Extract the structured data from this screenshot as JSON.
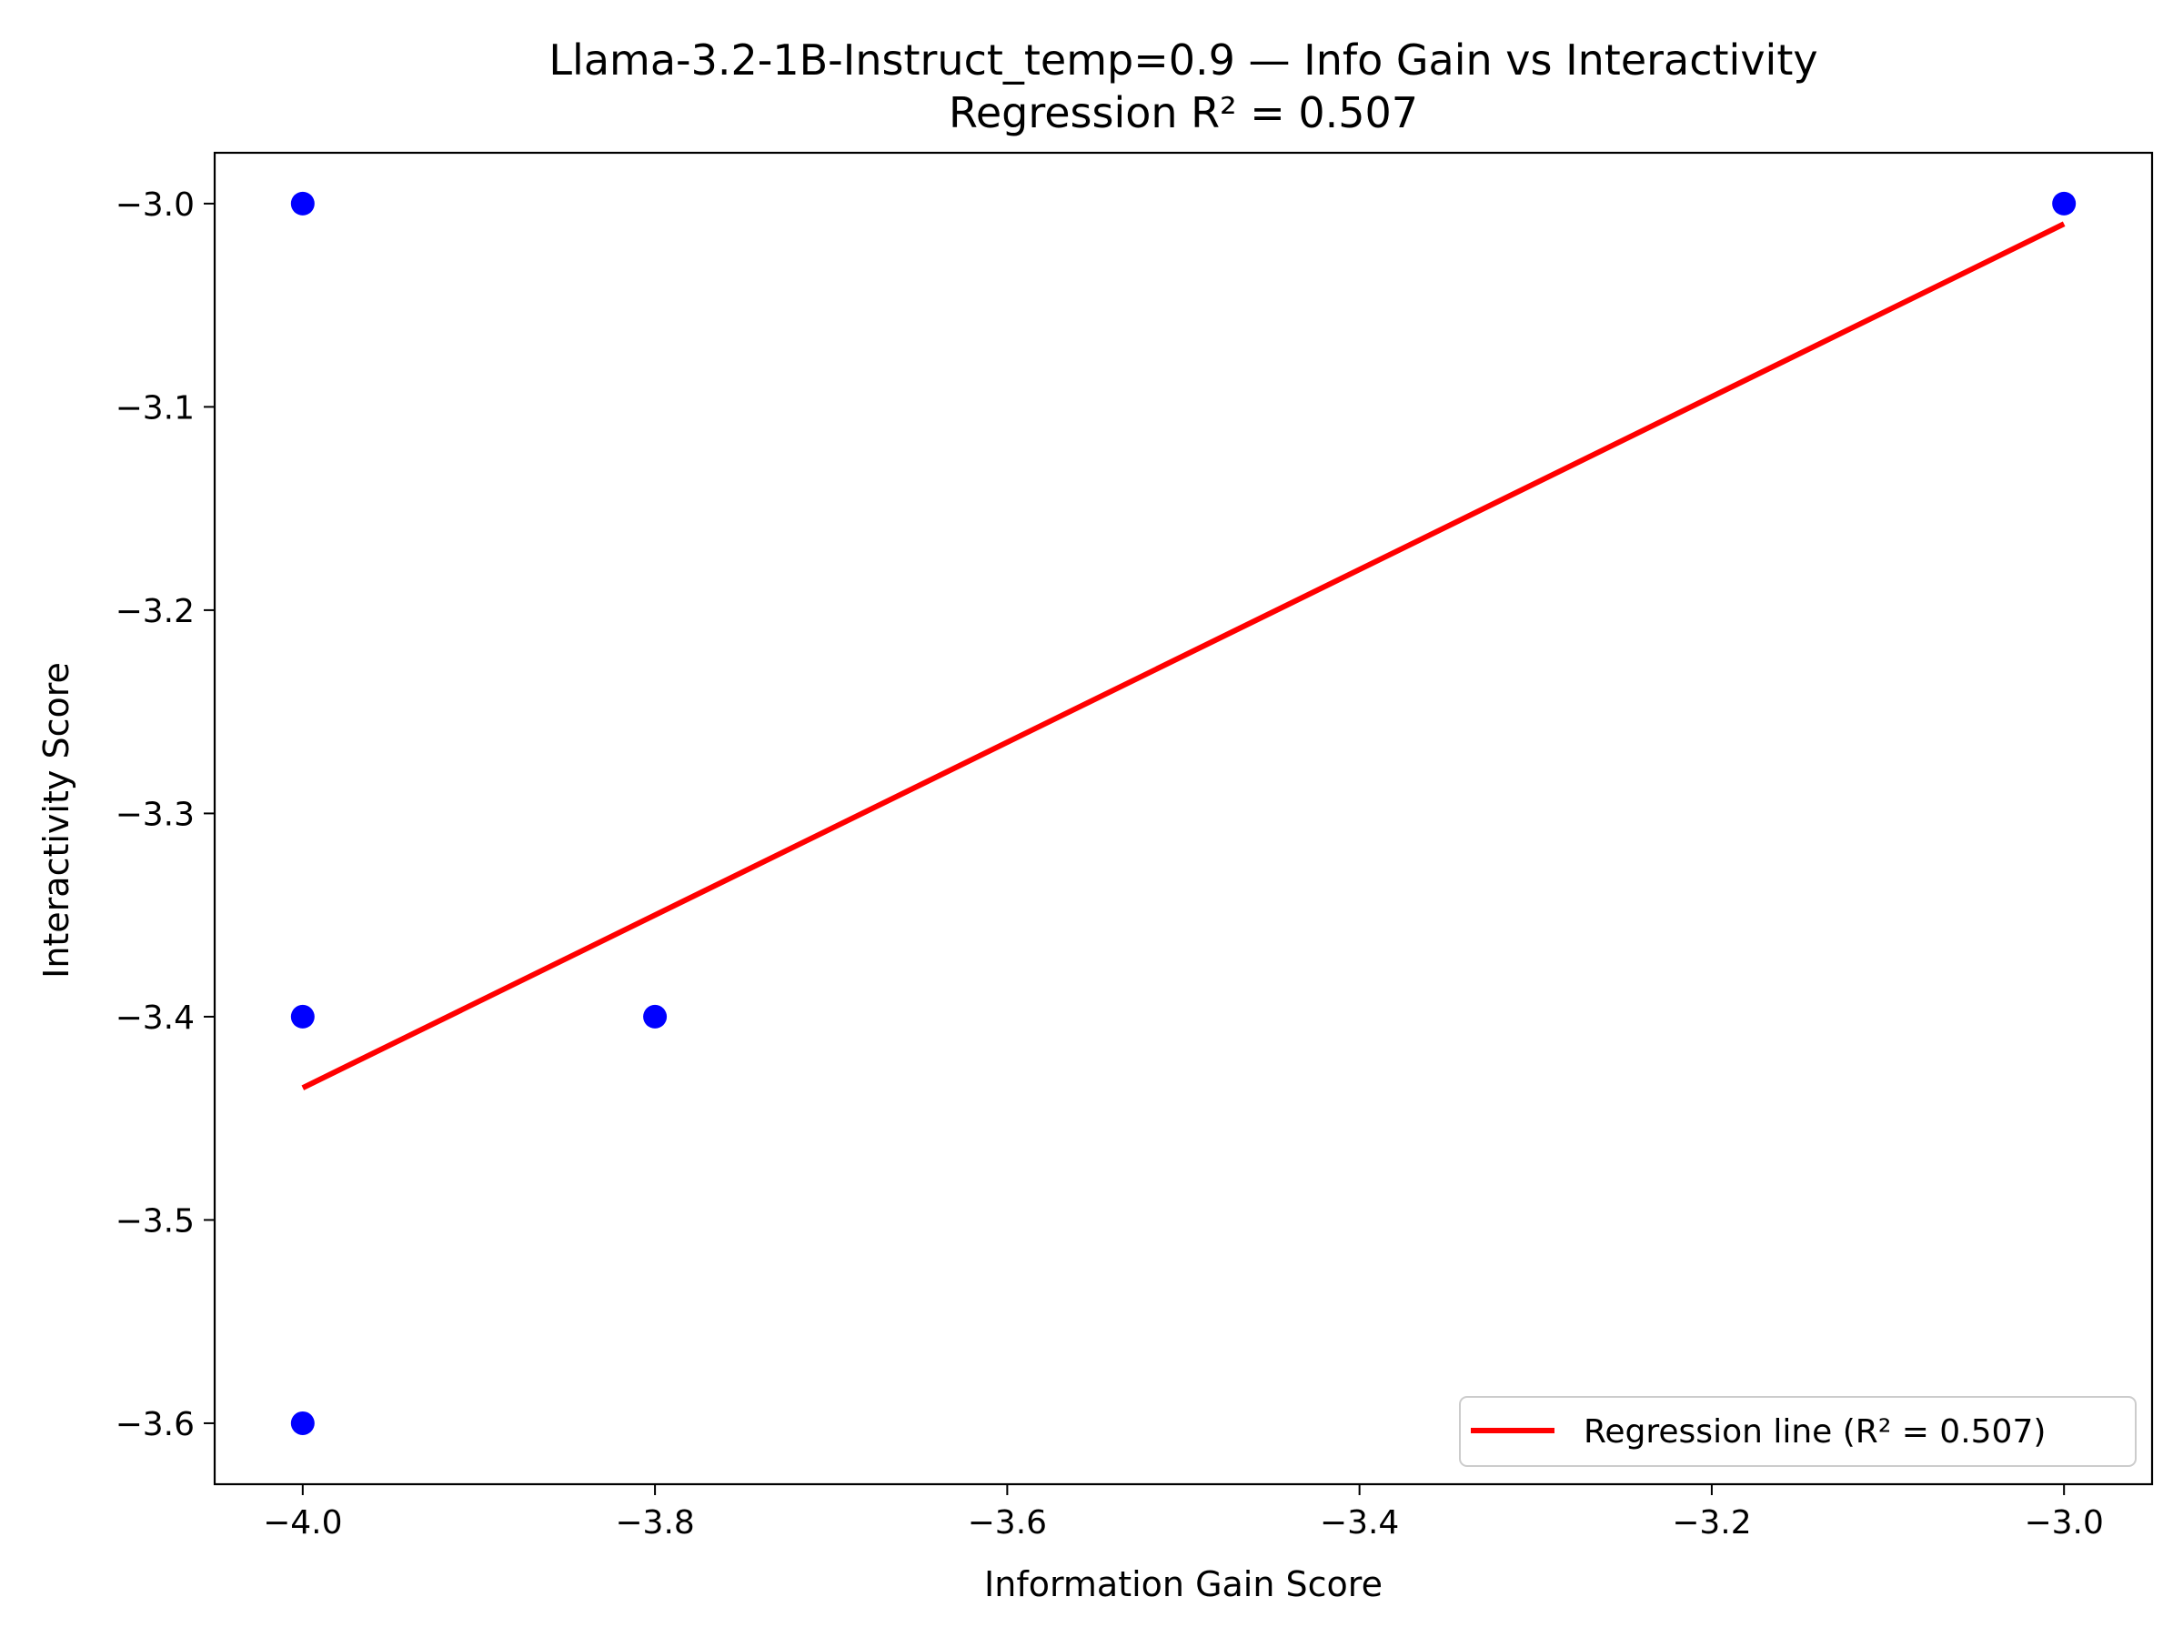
{
  "chart_data": {
    "type": "scatter",
    "title": "Llama-3.2-1B-Instruct_temp=0.9 — Info Gain vs Interactivity",
    "subtitle": "Regression R² = 0.507",
    "xlabel": "Information Gain Score",
    "ylabel": "Interactivity Score",
    "xlim": [
      -4.05,
      -2.95
    ],
    "ylim": [
      -3.63,
      -2.975
    ],
    "xticks": [
      -4.0,
      -3.8,
      -3.6,
      -3.4,
      -3.2,
      -3.0
    ],
    "xtick_labels": [
      "−4.0",
      "−3.8",
      "−3.6",
      "−3.4",
      "−3.2",
      "−3.0"
    ],
    "yticks": [
      -3.0,
      -3.1,
      -3.2,
      -3.3,
      -3.4,
      -3.5,
      -3.6
    ],
    "ytick_labels": [
      "−3.0",
      "−3.1",
      "−3.2",
      "−3.3",
      "−3.4",
      "−3.5",
      "−3.6"
    ],
    "grid": false,
    "legend_position": "lower-right",
    "points": {
      "color": "#0000ff",
      "x": [
        -4.0,
        -4.0,
        -4.0,
        -3.8,
        -3.0
      ],
      "y": [
        -3.0,
        -3.4,
        -3.6,
        -3.4,
        -3.0
      ]
    },
    "regression": {
      "label": "Regression line (R² = 0.507)",
      "color": "#ff0000",
      "x": [
        -4.0,
        -3.0
      ],
      "y": [
        -3.435,
        -3.01
      ]
    }
  }
}
